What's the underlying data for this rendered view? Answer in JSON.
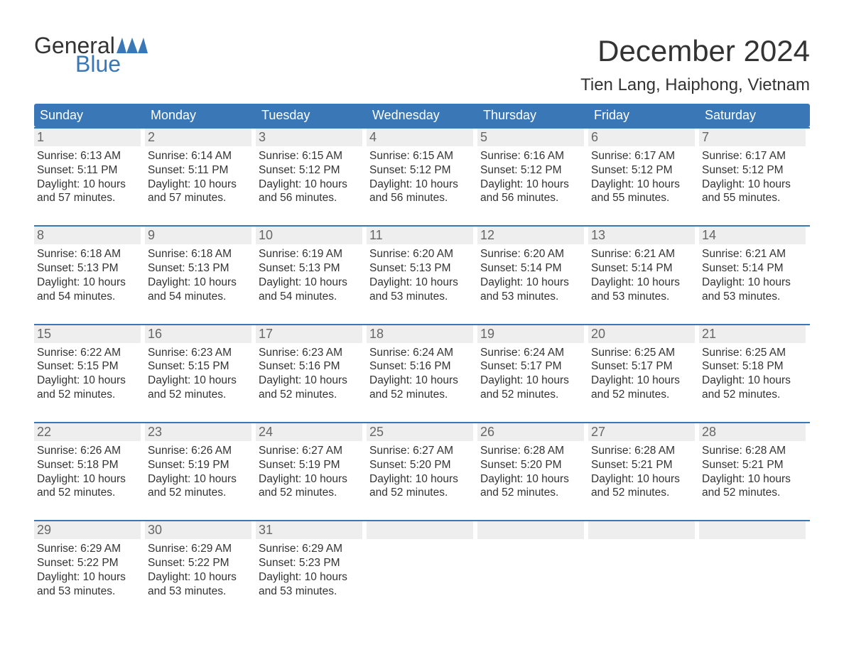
{
  "logo": {
    "word1": "General",
    "word2": "Blue"
  },
  "header": {
    "title": "December 2024",
    "subtitle": "Tien Lang, Haiphong, Vietnam"
  },
  "colors": {
    "brand": "#3a77b7",
    "daynum_bg": "#eeeeee",
    "daynum_fg": "#666666",
    "text": "#333333",
    "white": "#ffffff"
  },
  "weekdays": [
    "Sunday",
    "Monday",
    "Tuesday",
    "Wednesday",
    "Thursday",
    "Friday",
    "Saturday"
  ],
  "weeks": [
    [
      {
        "n": "1",
        "sr": "Sunrise: 6:13 AM",
        "ss": "Sunset: 5:11 PM",
        "d1": "Daylight: 10 hours",
        "d2": "and 57 minutes."
      },
      {
        "n": "2",
        "sr": "Sunrise: 6:14 AM",
        "ss": "Sunset: 5:11 PM",
        "d1": "Daylight: 10 hours",
        "d2": "and 57 minutes."
      },
      {
        "n": "3",
        "sr": "Sunrise: 6:15 AM",
        "ss": "Sunset: 5:12 PM",
        "d1": "Daylight: 10 hours",
        "d2": "and 56 minutes."
      },
      {
        "n": "4",
        "sr": "Sunrise: 6:15 AM",
        "ss": "Sunset: 5:12 PM",
        "d1": "Daylight: 10 hours",
        "d2": "and 56 minutes."
      },
      {
        "n": "5",
        "sr": "Sunrise: 6:16 AM",
        "ss": "Sunset: 5:12 PM",
        "d1": "Daylight: 10 hours",
        "d2": "and 56 minutes."
      },
      {
        "n": "6",
        "sr": "Sunrise: 6:17 AM",
        "ss": "Sunset: 5:12 PM",
        "d1": "Daylight: 10 hours",
        "d2": "and 55 minutes."
      },
      {
        "n": "7",
        "sr": "Sunrise: 6:17 AM",
        "ss": "Sunset: 5:12 PM",
        "d1": "Daylight: 10 hours",
        "d2": "and 55 minutes."
      }
    ],
    [
      {
        "n": "8",
        "sr": "Sunrise: 6:18 AM",
        "ss": "Sunset: 5:13 PM",
        "d1": "Daylight: 10 hours",
        "d2": "and 54 minutes."
      },
      {
        "n": "9",
        "sr": "Sunrise: 6:18 AM",
        "ss": "Sunset: 5:13 PM",
        "d1": "Daylight: 10 hours",
        "d2": "and 54 minutes."
      },
      {
        "n": "10",
        "sr": "Sunrise: 6:19 AM",
        "ss": "Sunset: 5:13 PM",
        "d1": "Daylight: 10 hours",
        "d2": "and 54 minutes."
      },
      {
        "n": "11",
        "sr": "Sunrise: 6:20 AM",
        "ss": "Sunset: 5:13 PM",
        "d1": "Daylight: 10 hours",
        "d2": "and 53 minutes."
      },
      {
        "n": "12",
        "sr": "Sunrise: 6:20 AM",
        "ss": "Sunset: 5:14 PM",
        "d1": "Daylight: 10 hours",
        "d2": "and 53 minutes."
      },
      {
        "n": "13",
        "sr": "Sunrise: 6:21 AM",
        "ss": "Sunset: 5:14 PM",
        "d1": "Daylight: 10 hours",
        "d2": "and 53 minutes."
      },
      {
        "n": "14",
        "sr": "Sunrise: 6:21 AM",
        "ss": "Sunset: 5:14 PM",
        "d1": "Daylight: 10 hours",
        "d2": "and 53 minutes."
      }
    ],
    [
      {
        "n": "15",
        "sr": "Sunrise: 6:22 AM",
        "ss": "Sunset: 5:15 PM",
        "d1": "Daylight: 10 hours",
        "d2": "and 52 minutes."
      },
      {
        "n": "16",
        "sr": "Sunrise: 6:23 AM",
        "ss": "Sunset: 5:15 PM",
        "d1": "Daylight: 10 hours",
        "d2": "and 52 minutes."
      },
      {
        "n": "17",
        "sr": "Sunrise: 6:23 AM",
        "ss": "Sunset: 5:16 PM",
        "d1": "Daylight: 10 hours",
        "d2": "and 52 minutes."
      },
      {
        "n": "18",
        "sr": "Sunrise: 6:24 AM",
        "ss": "Sunset: 5:16 PM",
        "d1": "Daylight: 10 hours",
        "d2": "and 52 minutes."
      },
      {
        "n": "19",
        "sr": "Sunrise: 6:24 AM",
        "ss": "Sunset: 5:17 PM",
        "d1": "Daylight: 10 hours",
        "d2": "and 52 minutes."
      },
      {
        "n": "20",
        "sr": "Sunrise: 6:25 AM",
        "ss": "Sunset: 5:17 PM",
        "d1": "Daylight: 10 hours",
        "d2": "and 52 minutes."
      },
      {
        "n": "21",
        "sr": "Sunrise: 6:25 AM",
        "ss": "Sunset: 5:18 PM",
        "d1": "Daylight: 10 hours",
        "d2": "and 52 minutes."
      }
    ],
    [
      {
        "n": "22",
        "sr": "Sunrise: 6:26 AM",
        "ss": "Sunset: 5:18 PM",
        "d1": "Daylight: 10 hours",
        "d2": "and 52 minutes."
      },
      {
        "n": "23",
        "sr": "Sunrise: 6:26 AM",
        "ss": "Sunset: 5:19 PM",
        "d1": "Daylight: 10 hours",
        "d2": "and 52 minutes."
      },
      {
        "n": "24",
        "sr": "Sunrise: 6:27 AM",
        "ss": "Sunset: 5:19 PM",
        "d1": "Daylight: 10 hours",
        "d2": "and 52 minutes."
      },
      {
        "n": "25",
        "sr": "Sunrise: 6:27 AM",
        "ss": "Sunset: 5:20 PM",
        "d1": "Daylight: 10 hours",
        "d2": "and 52 minutes."
      },
      {
        "n": "26",
        "sr": "Sunrise: 6:28 AM",
        "ss": "Sunset: 5:20 PM",
        "d1": "Daylight: 10 hours",
        "d2": "and 52 minutes."
      },
      {
        "n": "27",
        "sr": "Sunrise: 6:28 AM",
        "ss": "Sunset: 5:21 PM",
        "d1": "Daylight: 10 hours",
        "d2": "and 52 minutes."
      },
      {
        "n": "28",
        "sr": "Sunrise: 6:28 AM",
        "ss": "Sunset: 5:21 PM",
        "d1": "Daylight: 10 hours",
        "d2": "and 52 minutes."
      }
    ],
    [
      {
        "n": "29",
        "sr": "Sunrise: 6:29 AM",
        "ss": "Sunset: 5:22 PM",
        "d1": "Daylight: 10 hours",
        "d2": "and 53 minutes."
      },
      {
        "n": "30",
        "sr": "Sunrise: 6:29 AM",
        "ss": "Sunset: 5:22 PM",
        "d1": "Daylight: 10 hours",
        "d2": "and 53 minutes."
      },
      {
        "n": "31",
        "sr": "Sunrise: 6:29 AM",
        "ss": "Sunset: 5:23 PM",
        "d1": "Daylight: 10 hours",
        "d2": "and 53 minutes."
      },
      null,
      null,
      null,
      null
    ]
  ]
}
